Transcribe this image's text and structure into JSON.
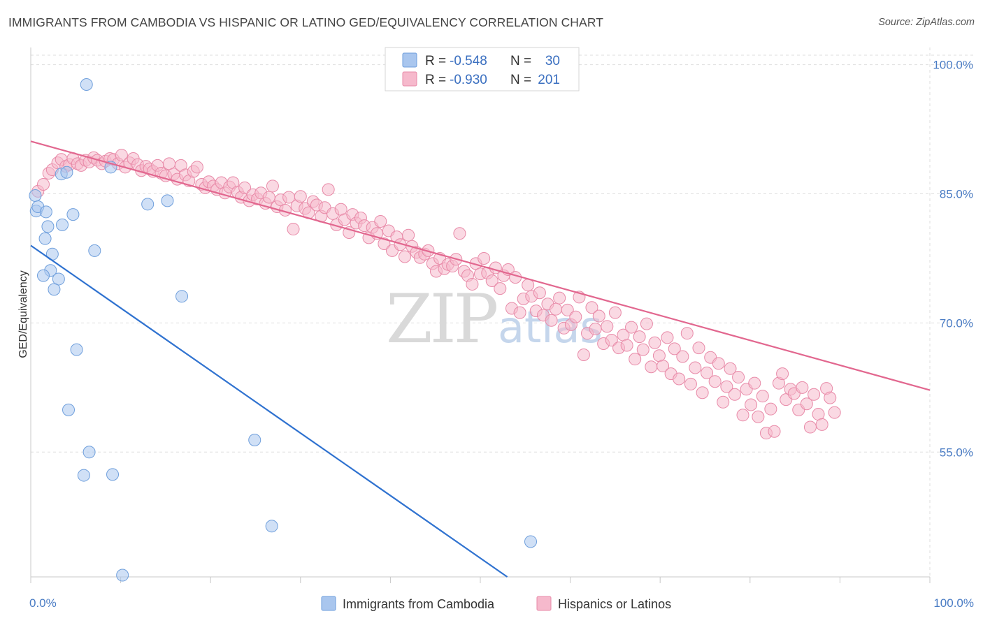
{
  "title": "IMMIGRANTS FROM CAMBODIA VS HISPANIC OR LATINO GED/EQUIVALENCY CORRELATION CHART",
  "source": "Source: ZipAtlas.com",
  "watermark": {
    "part1": "ZIP",
    "part2": "atlas"
  },
  "legend": {
    "rows": [
      {
        "r_label": "R =",
        "r_value": "-0.548",
        "n_label": "N =",
        "n_value": "30",
        "color": "#a9c6ee",
        "stroke": "#6f9fdc"
      },
      {
        "r_label": "R =",
        "r_value": "-0.930",
        "n_label": "N =",
        "n_value": "201",
        "color": "#f6b9cc",
        "stroke": "#e88aa8"
      }
    ]
  },
  "chart_data": {
    "type": "scatter",
    "xlabel": "",
    "ylabel": "GED/Equivalency",
    "xlim": [
      0,
      100
    ],
    "ylim": [
      40.5,
      102
    ],
    "x_tick_labels": [
      "0.0%",
      "100.0%"
    ],
    "y_ticks": [
      {
        "value": 100,
        "label": "100.0%"
      },
      {
        "value": 85,
        "label": "85.0%"
      },
      {
        "value": 70,
        "label": "70.0%"
      },
      {
        "value": 55,
        "label": "55.0%"
      }
    ],
    "grid": true,
    "series": [
      {
        "name": "Immigrants from Cambodia",
        "color": "#a9c6ee",
        "stroke": "#6f9fdc",
        "line_color": "#2f72d0",
        "trend": [
          [
            0,
            79.0
          ],
          [
            53,
            40.5
          ]
        ],
        "points": [
          [
            0.5,
            84.8
          ],
          [
            0.6,
            83.0
          ],
          [
            0.8,
            83.5
          ],
          [
            1.7,
            82.9
          ],
          [
            1.9,
            81.2
          ],
          [
            1.6,
            79.8
          ],
          [
            2.4,
            78.0
          ],
          [
            2.2,
            76.1
          ],
          [
            1.4,
            75.5
          ],
          [
            3.1,
            75.1
          ],
          [
            2.6,
            73.9
          ],
          [
            3.5,
            81.4
          ],
          [
            3.4,
            87.3
          ],
          [
            4.0,
            87.5
          ],
          [
            4.7,
            82.6
          ],
          [
            5.1,
            66.9
          ],
          [
            6.2,
            97.7
          ],
          [
            7.1,
            78.4
          ],
          [
            8.9,
            88.1
          ],
          [
            13.0,
            83.8
          ],
          [
            15.2,
            84.2
          ],
          [
            16.8,
            73.1
          ],
          [
            4.2,
            59.9
          ],
          [
            6.5,
            55.0
          ],
          [
            5.9,
            52.3
          ],
          [
            9.1,
            52.4
          ],
          [
            24.9,
            56.4
          ],
          [
            26.8,
            46.4
          ],
          [
            55.6,
            44.6
          ],
          [
            10.2,
            40.7
          ]
        ]
      },
      {
        "name": "Hispanics or Latinos",
        "color": "#f6b9cc",
        "stroke": "#e88aa8",
        "line_color": "#e2678f",
        "trend": [
          [
            0,
            91.1
          ],
          [
            100,
            62.2
          ]
        ],
        "points": [
          [
            0.8,
            85.3
          ],
          [
            1.4,
            86.1
          ],
          [
            2.0,
            87.4
          ],
          [
            2.4,
            87.8
          ],
          [
            3.0,
            88.6
          ],
          [
            3.4,
            89.0
          ],
          [
            3.9,
            88.2
          ],
          [
            4.3,
            88.4
          ],
          [
            4.7,
            89.1
          ],
          [
            5.2,
            88.5
          ],
          [
            5.6,
            88.3
          ],
          [
            6.1,
            88.9
          ],
          [
            6.5,
            88.7
          ],
          [
            7.0,
            89.2
          ],
          [
            7.4,
            88.9
          ],
          [
            7.9,
            88.5
          ],
          [
            8.3,
            88.8
          ],
          [
            8.8,
            89.1
          ],
          [
            9.2,
            89.0
          ],
          [
            9.7,
            88.5
          ],
          [
            10.1,
            89.5
          ],
          [
            10.5,
            88.1
          ],
          [
            11.0,
            88.6
          ],
          [
            11.4,
            89.1
          ],
          [
            11.9,
            88.4
          ],
          [
            12.3,
            87.7
          ],
          [
            12.8,
            88.2
          ],
          [
            13.2,
            87.9
          ],
          [
            13.6,
            87.6
          ],
          [
            14.1,
            88.3
          ],
          [
            14.5,
            87.4
          ],
          [
            15.0,
            87.1
          ],
          [
            15.4,
            88.5
          ],
          [
            15.9,
            87.3
          ],
          [
            16.3,
            86.7
          ],
          [
            16.7,
            88.3
          ],
          [
            17.2,
            87.2
          ],
          [
            17.6,
            86.5
          ],
          [
            18.1,
            87.6
          ],
          [
            18.5,
            88.1
          ],
          [
            19.0,
            86.1
          ],
          [
            19.4,
            85.7
          ],
          [
            19.8,
            86.4
          ],
          [
            20.3,
            85.9
          ],
          [
            20.7,
            85.5
          ],
          [
            21.2,
            86.3
          ],
          [
            21.6,
            85.1
          ],
          [
            22.1,
            85.8
          ],
          [
            22.5,
            86.3
          ],
          [
            23.0,
            85.2
          ],
          [
            23.4,
            84.6
          ],
          [
            23.8,
            85.7
          ],
          [
            24.3,
            84.2
          ],
          [
            24.7,
            84.9
          ],
          [
            25.2,
            84.4
          ],
          [
            25.6,
            85.1
          ],
          [
            26.1,
            83.9
          ],
          [
            26.5,
            84.6
          ],
          [
            26.9,
            85.9
          ],
          [
            27.4,
            83.5
          ],
          [
            27.8,
            84.3
          ],
          [
            28.3,
            83.1
          ],
          [
            28.7,
            84.6
          ],
          [
            29.2,
            80.9
          ],
          [
            29.6,
            83.6
          ],
          [
            30.0,
            84.7
          ],
          [
            30.5,
            83.3
          ],
          [
            30.9,
            82.8
          ],
          [
            31.4,
            84.1
          ],
          [
            31.8,
            83.7
          ],
          [
            32.3,
            82.4
          ],
          [
            32.7,
            83.4
          ],
          [
            33.1,
            85.5
          ],
          [
            33.6,
            82.7
          ],
          [
            34.0,
            81.4
          ],
          [
            34.5,
            83.2
          ],
          [
            34.9,
            82.0
          ],
          [
            35.4,
            80.5
          ],
          [
            35.8,
            82.6
          ],
          [
            36.2,
            81.6
          ],
          [
            36.7,
            82.2
          ],
          [
            37.1,
            81.3
          ],
          [
            37.6,
            79.9
          ],
          [
            38.0,
            81.1
          ],
          [
            38.5,
            80.4
          ],
          [
            38.9,
            81.8
          ],
          [
            39.3,
            79.2
          ],
          [
            39.8,
            80.7
          ],
          [
            40.2,
            78.4
          ],
          [
            40.7,
            80.0
          ],
          [
            41.1,
            79.1
          ],
          [
            41.6,
            77.7
          ],
          [
            42.0,
            80.2
          ],
          [
            42.4,
            78.9
          ],
          [
            42.9,
            78.2
          ],
          [
            43.3,
            77.6
          ],
          [
            43.8,
            78.0
          ],
          [
            44.2,
            78.4
          ],
          [
            44.7,
            76.9
          ],
          [
            45.1,
            76.0
          ],
          [
            45.5,
            77.5
          ],
          [
            46.0,
            76.3
          ],
          [
            46.4,
            76.8
          ],
          [
            46.9,
            76.6
          ],
          [
            47.3,
            77.4
          ],
          [
            47.7,
            80.4
          ],
          [
            48.2,
            76.0
          ],
          [
            48.6,
            75.5
          ],
          [
            49.1,
            74.5
          ],
          [
            49.5,
            76.9
          ],
          [
            50.0,
            75.7
          ],
          [
            50.4,
            77.5
          ],
          [
            50.8,
            75.8
          ],
          [
            51.3,
            74.9
          ],
          [
            51.7,
            76.4
          ],
          [
            52.2,
            74.0
          ],
          [
            52.6,
            75.5
          ],
          [
            53.1,
            76.2
          ],
          [
            53.5,
            71.7
          ],
          [
            53.9,
            75.3
          ],
          [
            54.4,
            71.2
          ],
          [
            54.8,
            72.8
          ],
          [
            55.3,
            74.4
          ],
          [
            55.7,
            73.1
          ],
          [
            56.2,
            71.4
          ],
          [
            56.6,
            73.5
          ],
          [
            57.0,
            70.9
          ],
          [
            57.5,
            72.2
          ],
          [
            57.9,
            70.3
          ],
          [
            58.4,
            71.6
          ],
          [
            58.8,
            72.9
          ],
          [
            59.3,
            69.4
          ],
          [
            59.7,
            71.5
          ],
          [
            60.1,
            69.8
          ],
          [
            60.6,
            70.7
          ],
          [
            61.0,
            73.0
          ],
          [
            61.5,
            66.3
          ],
          [
            61.9,
            68.8
          ],
          [
            62.4,
            71.8
          ],
          [
            62.8,
            69.3
          ],
          [
            63.2,
            70.8
          ],
          [
            63.7,
            67.6
          ],
          [
            64.1,
            69.6
          ],
          [
            64.6,
            68.0
          ],
          [
            65.0,
            71.2
          ],
          [
            65.4,
            67.1
          ],
          [
            65.9,
            68.6
          ],
          [
            66.3,
            67.4
          ],
          [
            66.8,
            69.5
          ],
          [
            67.2,
            65.8
          ],
          [
            67.7,
            68.4
          ],
          [
            68.1,
            66.9
          ],
          [
            68.5,
            69.9
          ],
          [
            69.0,
            64.9
          ],
          [
            69.4,
            67.7
          ],
          [
            69.9,
            66.2
          ],
          [
            70.3,
            65.0
          ],
          [
            70.8,
            68.3
          ],
          [
            71.2,
            64.1
          ],
          [
            71.6,
            67.0
          ],
          [
            72.1,
            63.5
          ],
          [
            72.5,
            66.1
          ],
          [
            73.0,
            68.8
          ],
          [
            73.4,
            62.9
          ],
          [
            73.9,
            64.8
          ],
          [
            74.3,
            67.1
          ],
          [
            74.7,
            61.9
          ],
          [
            75.2,
            64.2
          ],
          [
            75.6,
            66.0
          ],
          [
            76.1,
            63.2
          ],
          [
            76.5,
            65.3
          ],
          [
            77.0,
            60.8
          ],
          [
            77.4,
            62.6
          ],
          [
            77.8,
            64.7
          ],
          [
            78.3,
            61.7
          ],
          [
            78.7,
            63.7
          ],
          [
            79.2,
            59.3
          ],
          [
            79.6,
            62.3
          ],
          [
            80.1,
            60.5
          ],
          [
            80.5,
            63.0
          ],
          [
            80.9,
            59.1
          ],
          [
            81.4,
            61.5
          ],
          [
            81.8,
            57.2
          ],
          [
            82.3,
            60.0
          ],
          [
            82.7,
            57.4
          ],
          [
            83.2,
            63.0
          ],
          [
            83.6,
            64.1
          ],
          [
            84.0,
            61.1
          ],
          [
            84.5,
            62.3
          ],
          [
            84.9,
            61.8
          ],
          [
            85.4,
            59.9
          ],
          [
            85.8,
            62.5
          ],
          [
            86.3,
            60.6
          ],
          [
            86.7,
            57.9
          ],
          [
            87.1,
            61.7
          ],
          [
            87.6,
            59.4
          ],
          [
            88.0,
            58.2
          ],
          [
            88.5,
            62.4
          ],
          [
            88.9,
            61.3
          ],
          [
            89.4,
            59.6
          ]
        ]
      }
    ]
  },
  "bottom_legend": [
    {
      "label": "Immigrants from Cambodia",
      "color": "#a9c6ee",
      "stroke": "#6f9fdc"
    },
    {
      "label": "Hispanics or Latinos",
      "color": "#f6b9cc",
      "stroke": "#e88aa8"
    }
  ]
}
